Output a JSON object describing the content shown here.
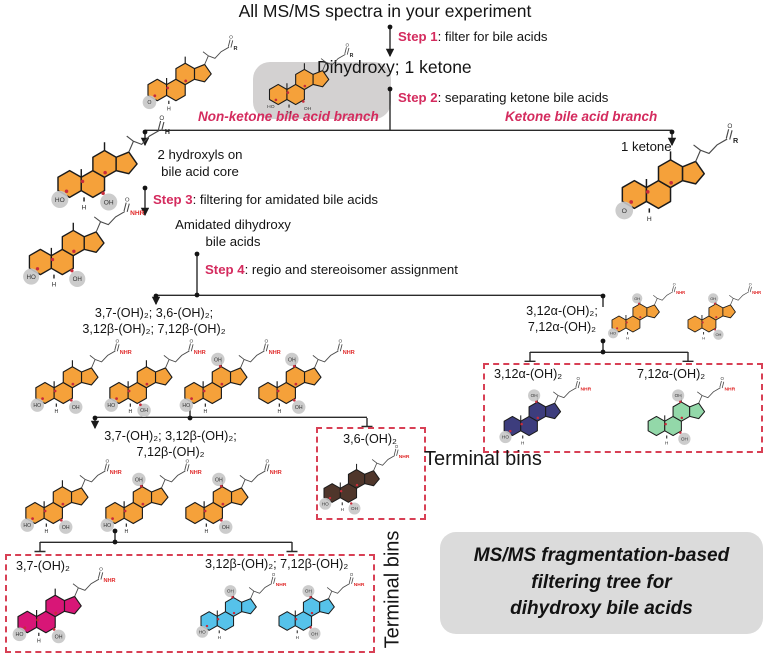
{
  "title": "All MS/MS spectra in your experiment",
  "colors": {
    "accent_pink": "#D42B5E",
    "bin_border_red": "#D84055",
    "orange": "#F5A13A",
    "navy": "#3D3D7D",
    "green": "#93D8A9",
    "brown": "#4F362B",
    "magenta": "#D81677",
    "light_blue": "#56C2EA",
    "gray_highlight": "#D3D1D1",
    "summary_bg": "#DBDBDB",
    "nhr_red": "#E02828"
  },
  "steps": [
    {
      "label": "Step 1",
      "desc": ": filter for bile acids"
    },
    {
      "label": "Step 2",
      "desc": ": separating ketone bile acids"
    },
    {
      "label": "Step 3",
      "desc": ": filtering for amidated bile acids"
    },
    {
      "label": "Step 4",
      "desc": ": regio and stereoisomer assignment"
    }
  ],
  "nodes": {
    "dihydroxy": "Dihydroxy; 1 ketone",
    "branch_left": "Non-ketone bile acid branch",
    "branch_right": "Ketone bile acid branch",
    "hydroxyls_line1": "2 hydroxyls on",
    "hydroxyls_line2": "bile acid core",
    "ketone": "1 ketone",
    "amidated_line1": "Amidated dihydroxy",
    "amidated_line2": "bile acids",
    "left_isomers_line1": "3,7-(OH)₂; 3,6-(OH)₂;",
    "left_isomers_line2": "3,12β-(OH)₂; 7,12β-(OH)₂",
    "right_isomers_line1": "3,12α-(OH)₂;",
    "right_isomers_line2": "7,12α-(OH)₂",
    "mid_isomers_line1": "3,7-(OH)₂; 3,12β-(OH)₂;",
    "mid_isomers_line2": "7,12β-(OH)₂"
  },
  "bins": {
    "bin_312a": "3,12α-(OH)₂",
    "bin_712a": "7,12α-(OH)₂",
    "bin_36": "3,6-(OH)₂",
    "bin_37": "3,7-(OH)₂",
    "bin_312b_712b": "3,12β-(OH)₂; 7,12β-(OH)₂",
    "terminal_bins_right": "Terminal bins",
    "terminal_bins_bottom": "Terminal bins"
  },
  "summary_box": {
    "line1": "MS/MS fragmentation-based",
    "line2": "filtering tree for",
    "line3": "dihydroxy bile acids"
  },
  "molecules": [
    {
      "name": "bile-acid-generic",
      "color": "#F5A13A",
      "end": "R",
      "end_red": false,
      "groups": [
        {
          "label": "O",
          "pos": "bl",
          "circle": true
        }
      ]
    },
    {
      "name": "bile-acid-dihydroxy-highlight",
      "color": "#F5A13A",
      "end": "R",
      "end_red": false,
      "groups": [
        {
          "label": "HO",
          "pos": "bl",
          "circle": false
        },
        {
          "label": "OH",
          "pos": "br",
          "circle": false
        }
      ]
    },
    {
      "name": "bile-acid-1-ketone",
      "color": "#F5A13A",
      "end": "R",
      "end_red": false,
      "groups": [
        {
          "label": "O",
          "pos": "bl",
          "circle": true
        }
      ]
    },
    {
      "name": "bile-acid-2-hydroxyls",
      "color": "#F5A13A",
      "end": "H",
      "end_red": false,
      "groups": [
        {
          "label": "HO",
          "pos": "bl",
          "circle": true
        },
        {
          "label": "OH",
          "pos": "br",
          "circle": true
        }
      ]
    },
    {
      "name": "amidated-dihydroxy",
      "color": "#F5A13A",
      "end": "NHR",
      "end_red": true,
      "groups": [
        {
          "label": "HO",
          "pos": "bl",
          "circle": true
        },
        {
          "label": "OH",
          "pos": "br",
          "circle": true
        }
      ]
    },
    {
      "name": "isomer-3-7",
      "color": "#F5A13A",
      "end": "NHR",
      "end_red": true,
      "groups": [
        {
          "label": "HO",
          "pos": "bl",
          "circle": true
        },
        {
          "label": "OH",
          "pos": "br",
          "circle": true
        }
      ]
    },
    {
      "name": "isomer-3-6",
      "color": "#F5A13A",
      "end": "NHR",
      "end_red": true,
      "groups": [
        {
          "label": "HO",
          "pos": "bl",
          "circle": true
        },
        {
          "label": "OH",
          "pos": "bm",
          "circle": true
        }
      ]
    },
    {
      "name": "isomer-3-12b",
      "color": "#F5A13A",
      "end": "NHR",
      "end_red": true,
      "groups": [
        {
          "label": "OH",
          "pos": "top",
          "circle": true
        },
        {
          "label": "HO",
          "pos": "bl",
          "circle": true
        }
      ]
    },
    {
      "name": "isomer-7-12b",
      "color": "#F5A13A",
      "end": "NHR",
      "end_red": true,
      "groups": [
        {
          "label": "OH",
          "pos": "top",
          "circle": true
        },
        {
          "label": "OH",
          "pos": "br",
          "circle": true
        }
      ]
    },
    {
      "name": "isomer-3-12a",
      "color": "#F5A13A",
      "end": "NHR",
      "end_red": true,
      "groups": [
        {
          "label": "OH",
          "pos": "top",
          "circle": true
        },
        {
          "label": "HO",
          "pos": "bl",
          "circle": true
        }
      ]
    },
    {
      "name": "isomer-7-12a",
      "color": "#F5A13A",
      "end": "NHR",
      "end_red": true,
      "groups": [
        {
          "label": "OH",
          "pos": "top",
          "circle": true
        },
        {
          "label": "OH",
          "pos": "br",
          "circle": true
        }
      ]
    },
    {
      "name": "terminal-3-12a",
      "color": "#3D3D7D",
      "end": "NHR",
      "end_red": true,
      "groups": [
        {
          "label": "OH",
          "pos": "top",
          "circle": true
        },
        {
          "label": "HO",
          "pos": "bl",
          "circle": true
        }
      ]
    },
    {
      "name": "terminal-7-12a",
      "color": "#93D8A9",
      "end": "NHR",
      "end_red": true,
      "groups": [
        {
          "label": "OH",
          "pos": "top",
          "circle": true
        },
        {
          "label": "OH",
          "pos": "br",
          "circle": true
        }
      ]
    },
    {
      "name": "isomer-3-7-b",
      "color": "#F5A13A",
      "end": "NHR",
      "end_red": true,
      "groups": [
        {
          "label": "HO",
          "pos": "bl",
          "circle": true
        },
        {
          "label": "OH",
          "pos": "br",
          "circle": true
        }
      ]
    },
    {
      "name": "isomer-3-12b-b",
      "color": "#F5A13A",
      "end": "NHR",
      "end_red": true,
      "groups": [
        {
          "label": "OH",
          "pos": "top",
          "circle": true
        },
        {
          "label": "HO",
          "pos": "bl",
          "circle": true
        }
      ]
    },
    {
      "name": "isomer-7-12b-b",
      "color": "#F5A13A",
      "end": "NHR",
      "end_red": true,
      "groups": [
        {
          "label": "OH",
          "pos": "top",
          "circle": true
        },
        {
          "label": "OH",
          "pos": "br",
          "circle": true
        }
      ]
    },
    {
      "name": "terminal-3-6",
      "color": "#4F362B",
      "end": "NHR",
      "end_red": true,
      "groups": [
        {
          "label": "HO",
          "pos": "bl",
          "circle": true
        },
        {
          "label": "OH",
          "pos": "bm",
          "circle": true
        }
      ]
    },
    {
      "name": "terminal-3-7",
      "color": "#D81677",
      "end": "NHR",
      "end_red": true,
      "groups": [
        {
          "label": "HO",
          "pos": "bl",
          "circle": true
        },
        {
          "label": "OH",
          "pos": "br",
          "circle": true
        }
      ]
    },
    {
      "name": "terminal-3-12b",
      "color": "#56C2EA",
      "end": "NHR",
      "end_red": true,
      "groups": [
        {
          "label": "OH",
          "pos": "top",
          "circle": true
        },
        {
          "label": "HO",
          "pos": "bl",
          "circle": true
        }
      ]
    },
    {
      "name": "terminal-7-12b",
      "color": "#56C2EA",
      "end": "NHR",
      "end_red": true,
      "groups": [
        {
          "label": "OH",
          "pos": "top",
          "circle": true
        },
        {
          "label": "OH",
          "pos": "br",
          "circle": true
        }
      ]
    }
  ]
}
